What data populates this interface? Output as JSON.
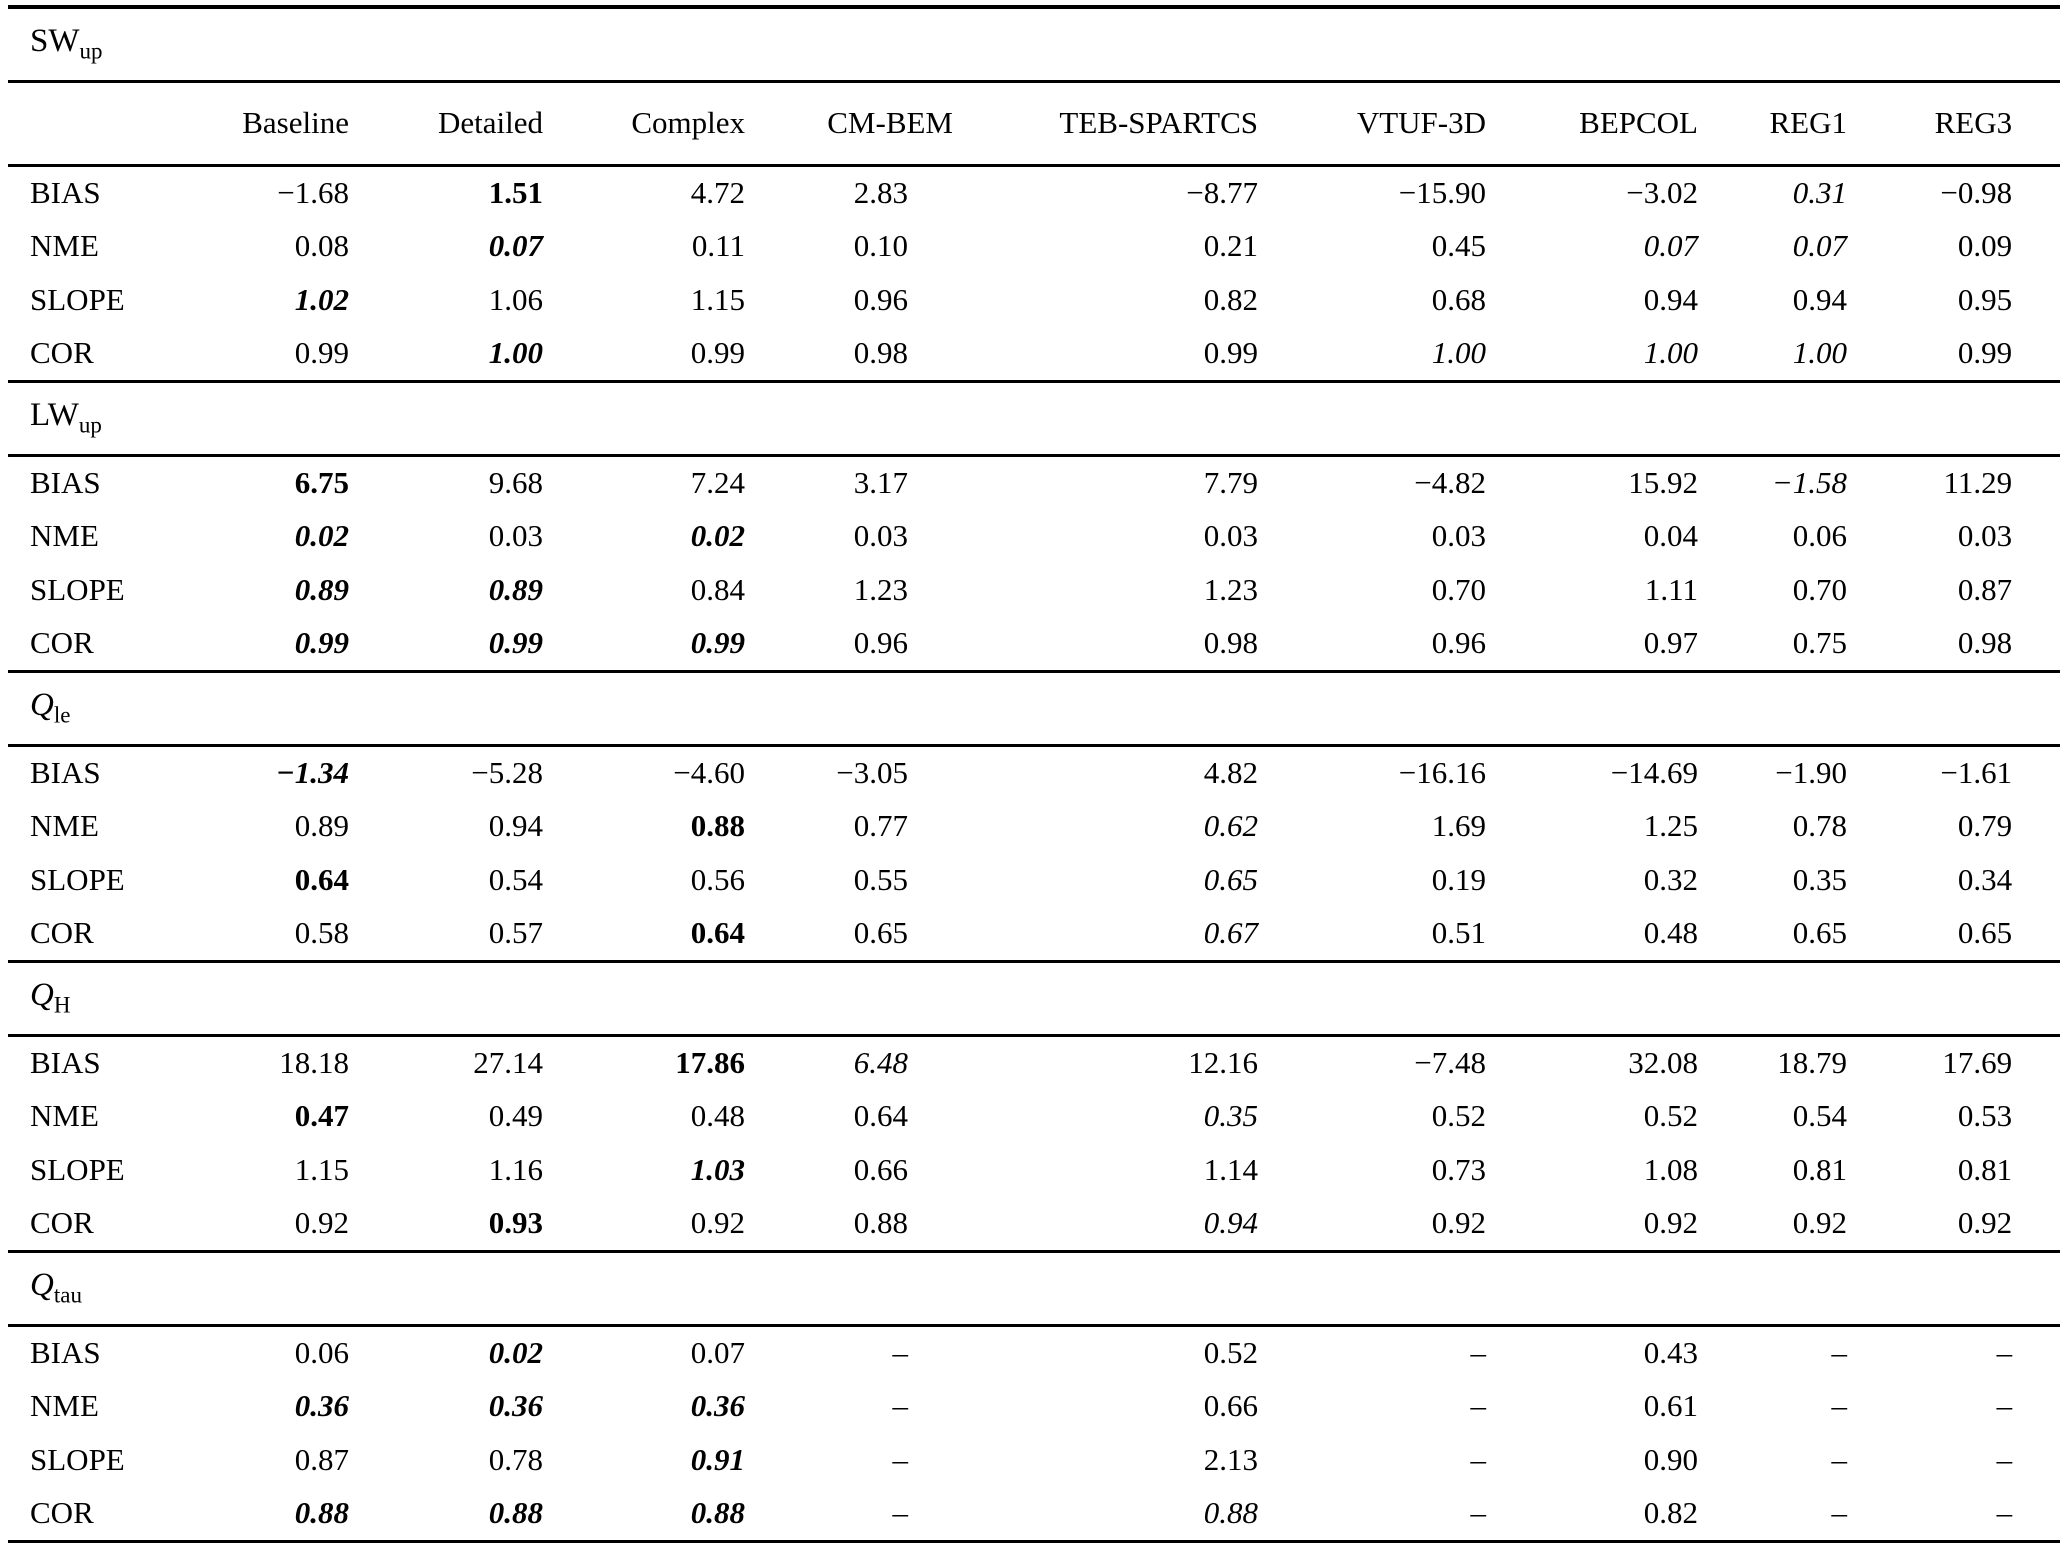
{
  "colors": {
    "background": "#ffffff",
    "text": "#000000",
    "rule": "#000000"
  },
  "table": {
    "column_headers": [
      "Baseline",
      "Detailed",
      "Complex",
      "CM-BEM",
      "TEB-SPARTCS",
      "VTUF-3D",
      "BEPCOL",
      "REG1",
      "REG3"
    ],
    "metric_names": [
      "BIAS",
      "NME",
      "SLOPE",
      "COR"
    ],
    "sections": [
      {
        "label": {
          "main": "SW",
          "sub": "up",
          "main_italic": false
        },
        "show_column_headers": true,
        "rows": [
          {
            "metric": "BIAS",
            "values": [
              {
                "v": "−1.68",
                "s": ""
              },
              {
                "v": "1.51",
                "s": "b"
              },
              {
                "v": "4.72",
                "s": ""
              },
              {
                "v": "2.83",
                "s": ""
              },
              {
                "v": "−8.77",
                "s": ""
              },
              {
                "v": "−15.90",
                "s": ""
              },
              {
                "v": "−3.02",
                "s": ""
              },
              {
                "v": "0.31",
                "s": "i"
              },
              {
                "v": "−0.98",
                "s": ""
              }
            ]
          },
          {
            "metric": "NME",
            "values": [
              {
                "v": "0.08",
                "s": ""
              },
              {
                "v": "0.07",
                "s": "bi"
              },
              {
                "v": "0.11",
                "s": ""
              },
              {
                "v": "0.10",
                "s": ""
              },
              {
                "v": "0.21",
                "s": ""
              },
              {
                "v": "0.45",
                "s": ""
              },
              {
                "v": "0.07",
                "s": "i"
              },
              {
                "v": "0.07",
                "s": "i"
              },
              {
                "v": "0.09",
                "s": ""
              }
            ]
          },
          {
            "metric": "SLOPE",
            "values": [
              {
                "v": "1.02",
                "s": "bi"
              },
              {
                "v": "1.06",
                "s": ""
              },
              {
                "v": "1.15",
                "s": ""
              },
              {
                "v": "0.96",
                "s": ""
              },
              {
                "v": "0.82",
                "s": ""
              },
              {
                "v": "0.68",
                "s": ""
              },
              {
                "v": "0.94",
                "s": ""
              },
              {
                "v": "0.94",
                "s": ""
              },
              {
                "v": "0.95",
                "s": ""
              }
            ]
          },
          {
            "metric": "COR",
            "values": [
              {
                "v": "0.99",
                "s": ""
              },
              {
                "v": "1.00",
                "s": "bi"
              },
              {
                "v": "0.99",
                "s": ""
              },
              {
                "v": "0.98",
                "s": ""
              },
              {
                "v": "0.99",
                "s": ""
              },
              {
                "v": "1.00",
                "s": "i"
              },
              {
                "v": "1.00",
                "s": "i"
              },
              {
                "v": "1.00",
                "s": "i"
              },
              {
                "v": "0.99",
                "s": ""
              }
            ]
          }
        ]
      },
      {
        "label": {
          "main": "LW",
          "sub": "up",
          "main_italic": false
        },
        "show_column_headers": false,
        "rows": [
          {
            "metric": "BIAS",
            "values": [
              {
                "v": "6.75",
                "s": "b"
              },
              {
                "v": "9.68",
                "s": ""
              },
              {
                "v": "7.24",
                "s": ""
              },
              {
                "v": "3.17",
                "s": ""
              },
              {
                "v": "7.79",
                "s": ""
              },
              {
                "v": "−4.82",
                "s": ""
              },
              {
                "v": "15.92",
                "s": ""
              },
              {
                "v": "−1.58",
                "s": "i"
              },
              {
                "v": "11.29",
                "s": ""
              }
            ]
          },
          {
            "metric": "NME",
            "values": [
              {
                "v": "0.02",
                "s": "bi"
              },
              {
                "v": "0.03",
                "s": ""
              },
              {
                "v": "0.02",
                "s": "bi"
              },
              {
                "v": "0.03",
                "s": ""
              },
              {
                "v": "0.03",
                "s": ""
              },
              {
                "v": "0.03",
                "s": ""
              },
              {
                "v": "0.04",
                "s": ""
              },
              {
                "v": "0.06",
                "s": ""
              },
              {
                "v": "0.03",
                "s": ""
              }
            ]
          },
          {
            "metric": "SLOPE",
            "values": [
              {
                "v": "0.89",
                "s": "bi"
              },
              {
                "v": "0.89",
                "s": "bi"
              },
              {
                "v": "0.84",
                "s": ""
              },
              {
                "v": "1.23",
                "s": ""
              },
              {
                "v": "1.23",
                "s": ""
              },
              {
                "v": "0.70",
                "s": ""
              },
              {
                "v": "1.11",
                "s": ""
              },
              {
                "v": "0.70",
                "s": ""
              },
              {
                "v": "0.87",
                "s": ""
              }
            ]
          },
          {
            "metric": "COR",
            "values": [
              {
                "v": "0.99",
                "s": "bi"
              },
              {
                "v": "0.99",
                "s": "bi"
              },
              {
                "v": "0.99",
                "s": "bi"
              },
              {
                "v": "0.96",
                "s": ""
              },
              {
                "v": "0.98",
                "s": ""
              },
              {
                "v": "0.96",
                "s": ""
              },
              {
                "v": "0.97",
                "s": ""
              },
              {
                "v": "0.75",
                "s": ""
              },
              {
                "v": "0.98",
                "s": ""
              }
            ]
          }
        ]
      },
      {
        "label": {
          "main": "Q",
          "sub": "le",
          "main_italic": true
        },
        "show_column_headers": false,
        "rows": [
          {
            "metric": "BIAS",
            "values": [
              {
                "v": "−1.34",
                "s": "bi"
              },
              {
                "v": "−5.28",
                "s": ""
              },
              {
                "v": "−4.60",
                "s": ""
              },
              {
                "v": "−3.05",
                "s": ""
              },
              {
                "v": "4.82",
                "s": ""
              },
              {
                "v": "−16.16",
                "s": ""
              },
              {
                "v": "−14.69",
                "s": ""
              },
              {
                "v": "−1.90",
                "s": ""
              },
              {
                "v": "−1.61",
                "s": ""
              }
            ]
          },
          {
            "metric": "NME",
            "values": [
              {
                "v": "0.89",
                "s": ""
              },
              {
                "v": "0.94",
                "s": ""
              },
              {
                "v": "0.88",
                "s": "b"
              },
              {
                "v": "0.77",
                "s": ""
              },
              {
                "v": "0.62",
                "s": "i"
              },
              {
                "v": "1.69",
                "s": ""
              },
              {
                "v": "1.25",
                "s": ""
              },
              {
                "v": "0.78",
                "s": ""
              },
              {
                "v": "0.79",
                "s": ""
              }
            ]
          },
          {
            "metric": "SLOPE",
            "values": [
              {
                "v": "0.64",
                "s": "b"
              },
              {
                "v": "0.54",
                "s": ""
              },
              {
                "v": "0.56",
                "s": ""
              },
              {
                "v": "0.55",
                "s": ""
              },
              {
                "v": "0.65",
                "s": "i"
              },
              {
                "v": "0.19",
                "s": ""
              },
              {
                "v": "0.32",
                "s": ""
              },
              {
                "v": "0.35",
                "s": ""
              },
              {
                "v": "0.34",
                "s": ""
              }
            ]
          },
          {
            "metric": "COR",
            "values": [
              {
                "v": "0.58",
                "s": ""
              },
              {
                "v": "0.57",
                "s": ""
              },
              {
                "v": "0.64",
                "s": "b"
              },
              {
                "v": "0.65",
                "s": ""
              },
              {
                "v": "0.67",
                "s": "i"
              },
              {
                "v": "0.51",
                "s": ""
              },
              {
                "v": "0.48",
                "s": ""
              },
              {
                "v": "0.65",
                "s": ""
              },
              {
                "v": "0.65",
                "s": ""
              }
            ]
          }
        ]
      },
      {
        "label": {
          "main": "Q",
          "sub": "H",
          "main_italic": true
        },
        "show_column_headers": false,
        "rows": [
          {
            "metric": "BIAS",
            "values": [
              {
                "v": "18.18",
                "s": ""
              },
              {
                "v": "27.14",
                "s": ""
              },
              {
                "v": "17.86",
                "s": "b"
              },
              {
                "v": "6.48",
                "s": "i"
              },
              {
                "v": "12.16",
                "s": ""
              },
              {
                "v": "−7.48",
                "s": ""
              },
              {
                "v": "32.08",
                "s": ""
              },
              {
                "v": "18.79",
                "s": ""
              },
              {
                "v": "17.69",
                "s": ""
              }
            ]
          },
          {
            "metric": "NME",
            "values": [
              {
                "v": "0.47",
                "s": "b"
              },
              {
                "v": "0.49",
                "s": ""
              },
              {
                "v": "0.48",
                "s": ""
              },
              {
                "v": "0.64",
                "s": ""
              },
              {
                "v": "0.35",
                "s": "i"
              },
              {
                "v": "0.52",
                "s": ""
              },
              {
                "v": "0.52",
                "s": ""
              },
              {
                "v": "0.54",
                "s": ""
              },
              {
                "v": "0.53",
                "s": ""
              }
            ]
          },
          {
            "metric": "SLOPE",
            "values": [
              {
                "v": "1.15",
                "s": ""
              },
              {
                "v": "1.16",
                "s": ""
              },
              {
                "v": "1.03",
                "s": "bi"
              },
              {
                "v": "0.66",
                "s": ""
              },
              {
                "v": "1.14",
                "s": ""
              },
              {
                "v": "0.73",
                "s": ""
              },
              {
                "v": "1.08",
                "s": ""
              },
              {
                "v": "0.81",
                "s": ""
              },
              {
                "v": "0.81",
                "s": ""
              }
            ]
          },
          {
            "metric": "COR",
            "values": [
              {
                "v": "0.92",
                "s": ""
              },
              {
                "v": "0.93",
                "s": "b"
              },
              {
                "v": "0.92",
                "s": ""
              },
              {
                "v": "0.88",
                "s": ""
              },
              {
                "v": "0.94",
                "s": "i"
              },
              {
                "v": "0.92",
                "s": ""
              },
              {
                "v": "0.92",
                "s": ""
              },
              {
                "v": "0.92",
                "s": ""
              },
              {
                "v": "0.92",
                "s": ""
              }
            ]
          }
        ]
      },
      {
        "label": {
          "main": "Q",
          "sub": "tau",
          "main_italic": true
        },
        "show_column_headers": false,
        "rows": [
          {
            "metric": "BIAS",
            "values": [
              {
                "v": "0.06",
                "s": ""
              },
              {
                "v": "0.02",
                "s": "bi"
              },
              {
                "v": "0.07",
                "s": ""
              },
              {
                "v": "–",
                "s": ""
              },
              {
                "v": "0.52",
                "s": ""
              },
              {
                "v": "–",
                "s": ""
              },
              {
                "v": "0.43",
                "s": ""
              },
              {
                "v": "–",
                "s": ""
              },
              {
                "v": "–",
                "s": ""
              }
            ]
          },
          {
            "metric": "NME",
            "values": [
              {
                "v": "0.36",
                "s": "bi"
              },
              {
                "v": "0.36",
                "s": "bi"
              },
              {
                "v": "0.36",
                "s": "bi"
              },
              {
                "v": "–",
                "s": ""
              },
              {
                "v": "0.66",
                "s": ""
              },
              {
                "v": "–",
                "s": ""
              },
              {
                "v": "0.61",
                "s": ""
              },
              {
                "v": "–",
                "s": ""
              },
              {
                "v": "–",
                "s": ""
              }
            ]
          },
          {
            "metric": "SLOPE",
            "values": [
              {
                "v": "0.87",
                "s": ""
              },
              {
                "v": "0.78",
                "s": ""
              },
              {
                "v": "0.91",
                "s": "bi"
              },
              {
                "v": "–",
                "s": ""
              },
              {
                "v": "2.13",
                "s": ""
              },
              {
                "v": "–",
                "s": ""
              },
              {
                "v": "0.90",
                "s": ""
              },
              {
                "v": "–",
                "s": ""
              },
              {
                "v": "–",
                "s": ""
              }
            ]
          },
          {
            "metric": "COR",
            "values": [
              {
                "v": "0.88",
                "s": "bi"
              },
              {
                "v": "0.88",
                "s": "bi"
              },
              {
                "v": "0.88",
                "s": "bi"
              },
              {
                "v": "–",
                "s": ""
              },
              {
                "v": "0.88",
                "s": "i"
              },
              {
                "v": "–",
                "s": ""
              },
              {
                "v": "0.82",
                "s": ""
              },
              {
                "v": "–",
                "s": ""
              },
              {
                "v": "–",
                "s": ""
              }
            ]
          }
        ]
      }
    ]
  }
}
